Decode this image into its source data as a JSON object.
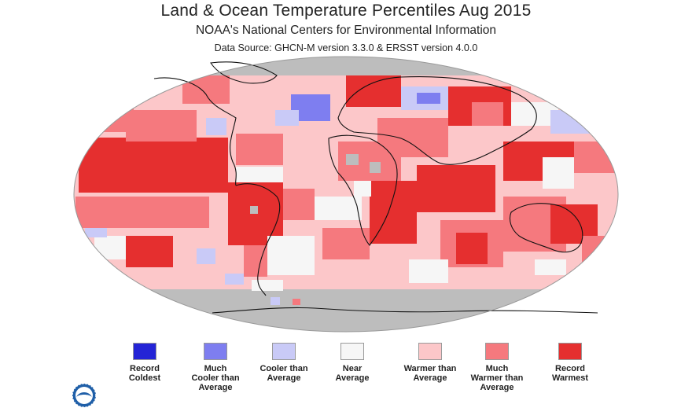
{
  "title": "Land & Ocean Temperature Percentiles Aug 2015",
  "subtitle": "NOAA's National Centers for Environmental Information",
  "data_source": "Data Source: GHCN-M version 3.3.0 & ERSST version 4.0.0",
  "legend": [
    {
      "label": "Record\nColdest",
      "color": "#2424d6"
    },
    {
      "label": "Much\nCooler than\nAverage",
      "color": "#7e7ef0"
    },
    {
      "label": "Cooler than\nAverage",
      "color": "#c9caf7"
    },
    {
      "label": "Near\nAverage",
      "color": "#f6f6f6"
    },
    {
      "label": "Warmer than\nAverage",
      "color": "#fcc7c9"
    },
    {
      "label": "Much\nWarmer than\nAverage",
      "color": "#f5797e"
    },
    {
      "label": "Record\nWarmest",
      "color": "#e52f2f"
    }
  ],
  "colors": {
    "no_data": "#bdbdbd",
    "coastline": "#111111"
  },
  "icons": {
    "logo": "noaa-logo-icon"
  }
}
